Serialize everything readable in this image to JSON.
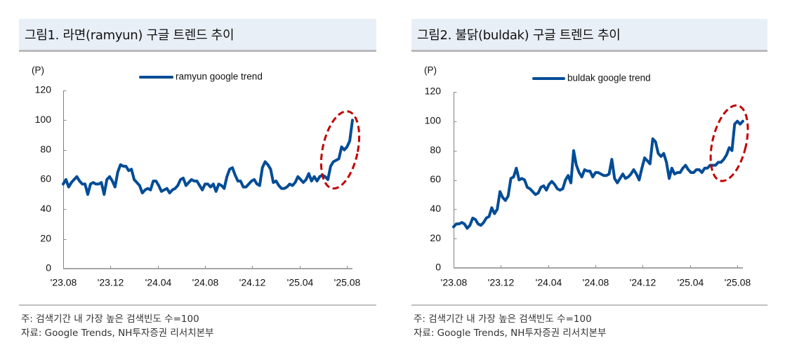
{
  "figures": [
    {
      "notes": [
        "주: 검색기간 내 가장 높은 검색빈도 수=100",
        "자료: Google Trends, NH투자증권 리서치본부"
      ]
    },
    {
      "notes": [
        "주: 검색기간 내 가장 높은 검색빈도 수=100",
        "자료: Google Trends, NH투자증권 리서치본부"
      ]
    }
  ],
  "chart_data": [
    {
      "type": "line",
      "title": "그림1. 라면(ramyun) 구글 트렌드 추이",
      "xlabel": "",
      "ylabel": "(P)",
      "xlim": [
        0,
        106
      ],
      "ylim": [
        0,
        120
      ],
      "yticks": [
        0,
        20,
        40,
        60,
        80,
        100,
        120
      ],
      "xticks": [
        "'23.08",
        "'23.12",
        "'24.04",
        "'24.08",
        "'24.12",
        "'25.04",
        "'25.08"
      ],
      "grid": false,
      "legend": {
        "position": "top-center"
      },
      "series": [
        {
          "name": "ramyun google trend",
          "color": "#004c97",
          "values": [
            57,
            60,
            55,
            58,
            60,
            62,
            59,
            57,
            57,
            50,
            57,
            58,
            57,
            57,
            58,
            50,
            60,
            62,
            59,
            55,
            65,
            70,
            69,
            69,
            66,
            67,
            60,
            58,
            56,
            51,
            53,
            54,
            53,
            59,
            59,
            56,
            52,
            53,
            54,
            51,
            53,
            54,
            56,
            60,
            61,
            56,
            58,
            60,
            59,
            59,
            56,
            53,
            57,
            57,
            55,
            57,
            52,
            57,
            56,
            54,
            62,
            67,
            68,
            63,
            59,
            59,
            55,
            55,
            57,
            59,
            60,
            57,
            56,
            68,
            72,
            70,
            67,
            58,
            59,
            56,
            54,
            54,
            55,
            57,
            56,
            58,
            62,
            60,
            58,
            60,
            64,
            59,
            62,
            59,
            62,
            63,
            62,
            60,
            69,
            72,
            73,
            74,
            82,
            80,
            82,
            86,
            100
          ]
        }
      ],
      "annotations": [
        {
          "type": "dashed-ellipse",
          "color": "#c00000",
          "x_range": [
            97,
            106
          ]
        }
      ]
    },
    {
      "type": "line",
      "title": "그림2. 불닭(buldak) 구글 트렌드 추이",
      "xlabel": "",
      "ylabel": "(P)",
      "xlim": [
        0,
        106
      ],
      "ylim": [
        0,
        120
      ],
      "yticks": [
        0,
        20,
        40,
        60,
        80,
        100,
        120
      ],
      "xticks": [
        "'23.08",
        "'23.12",
        "'24.04",
        "'24.08",
        "'24.12",
        "'25.04",
        "'25.08"
      ],
      "grid": false,
      "legend": {
        "position": "top-center"
      },
      "series": [
        {
          "name": "buldak google trend",
          "color": "#004c97",
          "values": [
            28,
            30,
            30,
            31,
            30,
            27,
            29,
            34,
            33,
            30,
            29,
            31,
            34,
            35,
            41,
            37,
            40,
            52,
            48,
            46,
            49,
            61,
            62,
            68,
            60,
            61,
            60,
            55,
            54,
            52,
            50,
            51,
            55,
            56,
            53,
            57,
            59,
            57,
            54,
            53,
            54,
            60,
            63,
            58,
            80,
            70,
            65,
            62,
            67,
            66,
            66,
            62,
            65,
            65,
            64,
            63,
            63,
            64,
            74,
            61,
            58,
            61,
            64,
            61,
            62,
            64,
            67,
            64,
            60,
            68,
            75,
            73,
            71,
            88,
            86,
            78,
            76,
            78,
            72,
            61,
            68,
            64,
            65,
            65,
            68,
            70,
            67,
            65,
            65,
            67,
            67,
            65,
            68,
            68,
            70,
            70,
            70,
            72,
            72,
            74,
            77,
            82,
            80,
            98,
            100,
            98,
            100
          ]
        }
      ],
      "annotations": [
        {
          "type": "dashed-ellipse",
          "color": "#c00000",
          "x_range": [
            96,
            106
          ]
        }
      ]
    }
  ]
}
